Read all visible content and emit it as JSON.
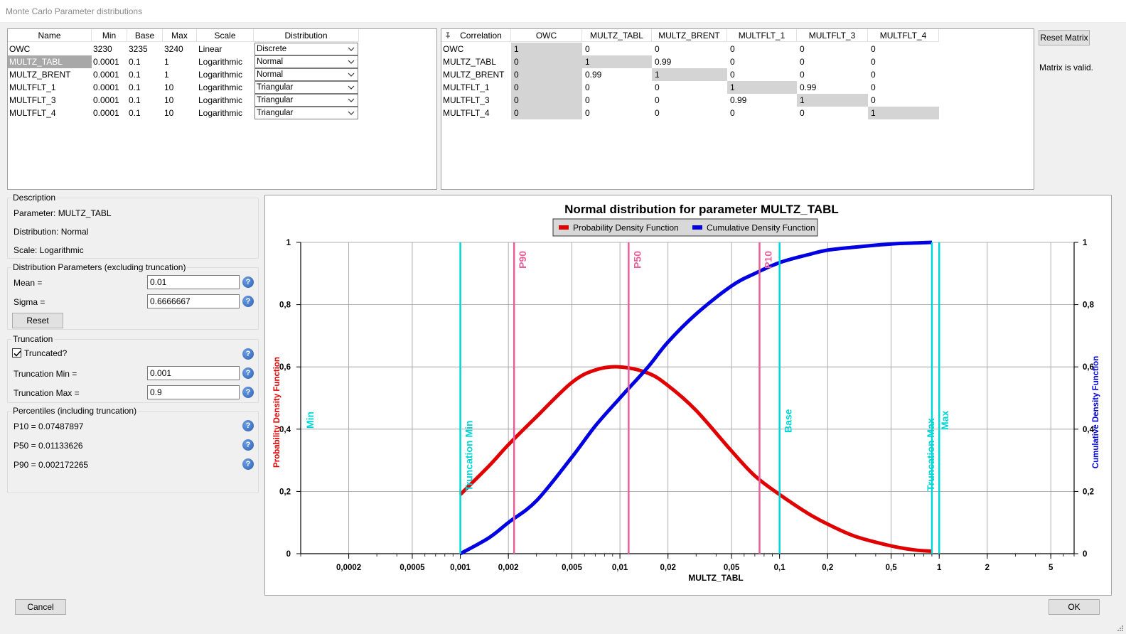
{
  "window": {
    "title": "Monte Carlo Parameter distributions"
  },
  "params_table": {
    "columns": [
      "Name",
      "Min",
      "Base",
      "Max",
      "Scale",
      "Distribution"
    ],
    "rows": [
      {
        "name": "OWC",
        "min": "3230",
        "base": "3235",
        "max": "3240",
        "scale": "Linear",
        "distribution": "Discrete"
      },
      {
        "name": "MULTZ_TABL",
        "min": "0.0001",
        "base": "0.1",
        "max": "1",
        "scale": "Logarithmic",
        "distribution": "Normal"
      },
      {
        "name": "MULTZ_BRENT",
        "min": "0.0001",
        "base": "0.1",
        "max": "1",
        "scale": "Logarithmic",
        "distribution": "Normal"
      },
      {
        "name": "MULTFLT_1",
        "min": "0.0001",
        "base": "0.1",
        "max": "10",
        "scale": "Logarithmic",
        "distribution": "Triangular"
      },
      {
        "name": "MULTFLT_3",
        "min": "0.0001",
        "base": "0.1",
        "max": "10",
        "scale": "Logarithmic",
        "distribution": "Triangular"
      },
      {
        "name": "MULTFLT_4",
        "min": "0.0001",
        "base": "0.1",
        "max": "10",
        "scale": "Logarithmic",
        "distribution": "Triangular"
      }
    ]
  },
  "correlation": {
    "header": "Correlation",
    "columns": [
      "OWC",
      "MULTZ_TABL",
      "MULTZ_BRENT",
      "MULTFLT_1",
      "MULTFLT_3",
      "MULTFLT_4"
    ],
    "rows": [
      {
        "name": "OWC",
        "values": [
          "1",
          "0",
          "0",
          "0",
          "0",
          "0"
        ]
      },
      {
        "name": "MULTZ_TABL",
        "values": [
          "0",
          "1",
          "0.99",
          "0",
          "0",
          "0"
        ]
      },
      {
        "name": "MULTZ_BRENT",
        "values": [
          "0",
          "0.99",
          "1",
          "0",
          "0",
          "0"
        ]
      },
      {
        "name": "MULTFLT_1",
        "values": [
          "0",
          "0",
          "0",
          "1",
          "0.99",
          "0"
        ]
      },
      {
        "name": "MULTFLT_3",
        "values": [
          "0",
          "0",
          "0",
          "0.99",
          "1",
          "0"
        ]
      },
      {
        "name": "MULTFLT_4",
        "values": [
          "0",
          "0",
          "0",
          "0",
          "0",
          "1"
        ]
      }
    ],
    "reset_label": "Reset Matrix",
    "status": "Matrix is valid."
  },
  "description": {
    "title": "Description",
    "parameter": "Parameter: MULTZ_TABL",
    "distribution": "Distribution: Normal",
    "scale": "Scale: Logarithmic"
  },
  "dist_params": {
    "title": "Distribution Parameters (excluding truncation)",
    "mean_label": "Mean =",
    "mean_value": "0.01",
    "sigma_label": "Sigma =",
    "sigma_value": "0.6666667",
    "reset_label": "Reset"
  },
  "truncation": {
    "title": "Truncation",
    "truncated_label": "Truncated?",
    "truncated": true,
    "min_label": "Truncation Min =",
    "min_value": "0.001",
    "max_label": "Truncation Max =",
    "max_value": "0.9"
  },
  "percentiles": {
    "title": "Percentiles (including truncation)",
    "p10": "P10 = 0.07487897",
    "p50": "P50 = 0.01133626",
    "p90": "P90 = 0.002172265"
  },
  "buttons": {
    "cancel": "Cancel",
    "ok": "OK"
  },
  "colors": {
    "pdf": "#e00000",
    "cdf": "#0000e0",
    "marker_pct": "#e8609a",
    "marker_ref": "#00d6d6",
    "selected_row": "#a8a8a8",
    "diag": "#d4d4d4"
  },
  "chart_data": {
    "type": "line",
    "title": "Normal distribution for parameter MULTZ_TABL",
    "xlabel": "MULTZ_TABL",
    "ylabel_left": "Probability Density Function",
    "ylabel_right": "Cumulative Density Function",
    "x_scale": "log",
    "xlim": [
      0.0001,
      7
    ],
    "ylim": [
      0,
      1
    ],
    "x_ticks": [
      "0,0002",
      "0,0005",
      "0,001",
      "0,002",
      "0,005",
      "0,01",
      "0,02",
      "0,05",
      "0,1",
      "0,2",
      "0,5",
      "1",
      "2",
      "5"
    ],
    "x_tick_values": [
      0.0002,
      0.0005,
      0.001,
      0.002,
      0.005,
      0.01,
      0.02,
      0.05,
      0.1,
      0.2,
      0.5,
      1,
      2,
      5
    ],
    "y_ticks": [
      "0",
      "0,2",
      "0,4",
      "0,6",
      "0,8",
      "1"
    ],
    "y_tick_values": [
      0,
      0.2,
      0.4,
      0.6,
      0.8,
      1
    ],
    "legend": [
      "Probability Density Function",
      "Cumulative Density Function"
    ],
    "legend_position": "top-center",
    "grid": true,
    "series": [
      {
        "name": "Probability Density Function",
        "x": [
          0.001,
          0.0015,
          0.002,
          0.003,
          0.005,
          0.007,
          0.01,
          0.015,
          0.02,
          0.03,
          0.05,
          0.07,
          0.1,
          0.15,
          0.2,
          0.3,
          0.5,
          0.7,
          0.9
        ],
        "y": [
          0.19,
          0.28,
          0.35,
          0.44,
          0.55,
          0.59,
          0.6,
          0.58,
          0.54,
          0.46,
          0.33,
          0.25,
          0.19,
          0.13,
          0.095,
          0.055,
          0.025,
          0.012,
          0.008
        ]
      },
      {
        "name": "Cumulative Density Function",
        "x": [
          0.001,
          0.0015,
          0.002,
          0.003,
          0.005,
          0.007,
          0.01,
          0.015,
          0.02,
          0.03,
          0.05,
          0.07,
          0.1,
          0.15,
          0.2,
          0.3,
          0.5,
          0.7,
          0.9
        ],
        "y": [
          0.0,
          0.05,
          0.1,
          0.17,
          0.31,
          0.41,
          0.5,
          0.6,
          0.68,
          0.77,
          0.86,
          0.9,
          0.935,
          0.96,
          0.975,
          0.985,
          0.995,
          0.998,
          1.0
        ]
      }
    ],
    "markers": [
      {
        "label": "Min",
        "x": 0.0001,
        "kind": "ref",
        "show_line": false
      },
      {
        "label": "Truncation Min",
        "x": 0.001,
        "kind": "ref",
        "show_line": true
      },
      {
        "label": "P90",
        "x": 0.002172265,
        "kind": "pct",
        "show_line": true
      },
      {
        "label": "P50",
        "x": 0.01133626,
        "kind": "pct",
        "show_line": true
      },
      {
        "label": "P10",
        "x": 0.07487897,
        "kind": "pct",
        "show_line": true
      },
      {
        "label": "Base",
        "x": 0.1,
        "kind": "ref",
        "show_line": true
      },
      {
        "label": "Truncation Max",
        "x": 0.9,
        "kind": "ref",
        "show_line": true
      },
      {
        "label": "Max",
        "x": 1,
        "kind": "ref",
        "show_line": true
      }
    ]
  }
}
